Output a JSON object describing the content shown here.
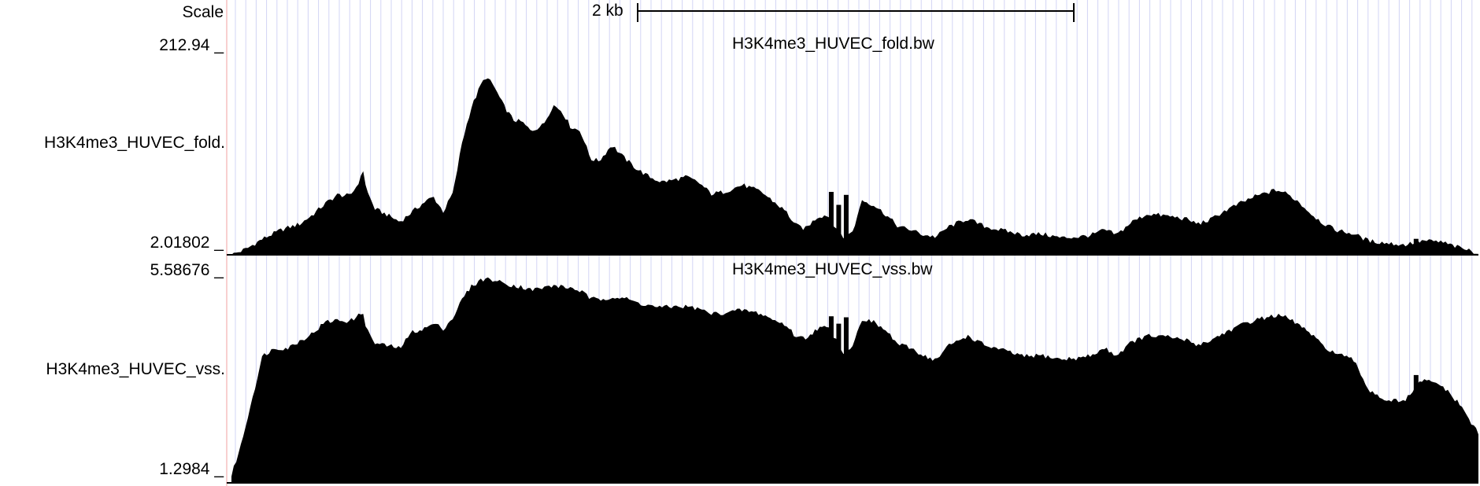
{
  "scale": {
    "label": "Scale",
    "bar_text": "2 kb"
  },
  "chart_data": [
    {
      "type": "area",
      "title": "H3K4me3_HUVEC_fold.bw",
      "track_label": "H3K4me3_HUVEC_fold.",
      "y_max_label": "212.94 _",
      "y_min_label": "2.01802 _",
      "ylim": [
        2.01802,
        212.94
      ],
      "color": "#000000",
      "profile": [
        [
          0.0,
          2.0
        ],
        [
          0.012,
          8.0
        ],
        [
          0.025,
          18.0
        ],
        [
          0.04,
          27.0
        ],
        [
          0.055,
          33.0
        ],
        [
          0.065,
          42.0
        ],
        [
          0.075,
          53.0
        ],
        [
          0.085,
          62.0
        ],
        [
          0.095,
          61.0
        ],
        [
          0.1,
          70.0
        ],
        [
          0.104,
          80.0
        ],
        [
          0.106,
          88.0
        ],
        [
          0.108,
          68.0
        ],
        [
          0.115,
          48.0
        ],
        [
          0.125,
          42.0
        ],
        [
          0.135,
          35.0
        ],
        [
          0.145,
          45.0
        ],
        [
          0.155,
          55.0
        ],
        [
          0.162,
          60.0
        ],
        [
          0.17,
          45.0
        ],
        [
          0.178,
          65.0
        ],
        [
          0.185,
          115.0
        ],
        [
          0.192,
          148.0
        ],
        [
          0.2,
          172.0
        ],
        [
          0.204,
          180.0
        ],
        [
          0.21,
          172.0
        ],
        [
          0.218,
          152.0
        ],
        [
          0.226,
          137.0
        ],
        [
          0.233,
          135.0
        ],
        [
          0.24,
          126.0
        ],
        [
          0.25,
          132.0
        ],
        [
          0.258,
          152.0
        ],
        [
          0.265,
          146.0
        ],
        [
          0.272,
          130.0
        ],
        [
          0.28,
          126.0
        ],
        [
          0.288,
          98.0
        ],
        [
          0.295,
          96.0
        ],
        [
          0.305,
          112.0
        ],
        [
          0.315,
          99.0
        ],
        [
          0.325,
          88.0
        ],
        [
          0.335,
          80.0
        ],
        [
          0.345,
          75.0
        ],
        [
          0.355,
          77.0
        ],
        [
          0.365,
          80.0
        ],
        [
          0.375,
          74.0
        ],
        [
          0.385,
          63.0
        ],
        [
          0.395,
          65.0
        ],
        [
          0.41,
          72.0
        ],
        [
          0.425,
          65.0
        ],
        [
          0.435,
          55.0
        ],
        [
          0.445,
          45.0
        ],
        [
          0.452,
          32.0
        ],
        [
          0.46,
          28.0
        ],
        [
          0.47,
          40.0
        ],
        [
          0.478,
          42.0
        ],
        [
          0.486,
          27.0
        ],
        [
          0.492,
          18.0
        ],
        [
          0.5,
          30.0
        ],
        [
          0.505,
          57.0
        ],
        [
          0.515,
          52.0
        ],
        [
          0.525,
          42.0
        ],
        [
          0.535,
          30.0
        ],
        [
          0.545,
          27.0
        ],
        [
          0.555,
          22.0
        ],
        [
          0.565,
          20.0
        ],
        [
          0.575,
          30.0
        ],
        [
          0.59,
          38.0
        ],
        [
          0.605,
          30.0
        ],
        [
          0.62,
          26.0
        ],
        [
          0.635,
          22.0
        ],
        [
          0.65,
          23.0
        ],
        [
          0.665,
          19.0
        ],
        [
          0.68,
          20.0
        ],
        [
          0.69,
          22.0
        ],
        [
          0.7,
          27.0
        ],
        [
          0.71,
          22.0
        ],
        [
          0.722,
          35.0
        ],
        [
          0.735,
          43.0
        ],
        [
          0.75,
          41.0
        ],
        [
          0.765,
          38.0
        ],
        [
          0.775,
          33.0
        ],
        [
          0.785,
          37.0
        ],
        [
          0.795,
          45.0
        ],
        [
          0.808,
          53.0
        ],
        [
          0.82,
          60.0
        ],
        [
          0.83,
          64.0
        ],
        [
          0.838,
          67.0
        ],
        [
          0.845,
          64.0
        ],
        [
          0.855,
          56.0
        ],
        [
          0.865,
          44.0
        ],
        [
          0.875,
          34.0
        ],
        [
          0.885,
          27.0
        ],
        [
          0.9,
          23.0
        ],
        [
          0.912,
          16.0
        ],
        [
          0.925,
          14.0
        ],
        [
          0.94,
          12.0
        ],
        [
          0.955,
          16.0
        ],
        [
          0.97,
          15.0
        ],
        [
          0.985,
          9.0
        ],
        [
          1.0,
          4.0
        ]
      ],
      "spikes": [
        [
          0.481,
          65.0
        ],
        [
          0.487,
          52.0
        ],
        [
          0.493,
          62.0
        ],
        [
          0.86,
          44.0
        ],
        [
          0.95,
          18.0
        ]
      ]
    },
    {
      "type": "area",
      "title": "H3K4me3_HUVEC_vss.bw",
      "track_label": "H3K4me3_HUVEC_vss.",
      "y_max_label": "5.58676 _",
      "y_min_label": "1.2984 _",
      "ylim": [
        1.2984,
        5.58676
      ],
      "color": "#000000",
      "profile": [
        [
          0.0,
          1.45
        ],
        [
          0.008,
          2.1
        ],
        [
          0.015,
          2.85
        ],
        [
          0.025,
          3.9
        ],
        [
          0.035,
          4.05
        ],
        [
          0.045,
          4.05
        ],
        [
          0.055,
          4.2
        ],
        [
          0.065,
          4.35
        ],
        [
          0.075,
          4.58
        ],
        [
          0.085,
          4.62
        ],
        [
          0.095,
          4.6
        ],
        [
          0.1,
          4.68
        ],
        [
          0.104,
          4.75
        ],
        [
          0.106,
          4.8
        ],
        [
          0.108,
          4.45
        ],
        [
          0.115,
          4.15
        ],
        [
          0.125,
          4.1
        ],
        [
          0.135,
          4.05
        ],
        [
          0.145,
          4.38
        ],
        [
          0.155,
          4.45
        ],
        [
          0.162,
          4.55
        ],
        [
          0.17,
          4.45
        ],
        [
          0.178,
          4.68
        ],
        [
          0.185,
          5.05
        ],
        [
          0.192,
          5.3
        ],
        [
          0.2,
          5.44
        ],
        [
          0.204,
          5.47
        ],
        [
          0.21,
          5.44
        ],
        [
          0.218,
          5.38
        ],
        [
          0.226,
          5.33
        ],
        [
          0.233,
          5.3
        ],
        [
          0.24,
          5.24
        ],
        [
          0.25,
          5.28
        ],
        [
          0.258,
          5.33
        ],
        [
          0.265,
          5.3
        ],
        [
          0.272,
          5.28
        ],
        [
          0.28,
          5.22
        ],
        [
          0.288,
          5.06
        ],
        [
          0.295,
          5.04
        ],
        [
          0.305,
          5.1
        ],
        [
          0.315,
          5.07
        ],
        [
          0.325,
          4.98
        ],
        [
          0.335,
          4.92
        ],
        [
          0.345,
          4.88
        ],
        [
          0.355,
          4.9
        ],
        [
          0.365,
          4.9
        ],
        [
          0.375,
          4.85
        ],
        [
          0.385,
          4.75
        ],
        [
          0.395,
          4.77
        ],
        [
          0.41,
          4.83
        ],
        [
          0.425,
          4.75
        ],
        [
          0.435,
          4.62
        ],
        [
          0.445,
          4.52
        ],
        [
          0.452,
          4.3
        ],
        [
          0.46,
          4.25
        ],
        [
          0.47,
          4.45
        ],
        [
          0.478,
          4.48
        ],
        [
          0.486,
          4.2
        ],
        [
          0.492,
          3.9
        ],
        [
          0.5,
          4.2
        ],
        [
          0.505,
          4.65
        ],
        [
          0.515,
          4.58
        ],
        [
          0.525,
          4.4
        ],
        [
          0.535,
          4.12
        ],
        [
          0.545,
          4.05
        ],
        [
          0.555,
          3.9
        ],
        [
          0.565,
          3.8
        ],
        [
          0.575,
          4.1
        ],
        [
          0.59,
          4.3
        ],
        [
          0.605,
          4.1
        ],
        [
          0.62,
          4.0
        ],
        [
          0.635,
          3.88
        ],
        [
          0.65,
          3.9
        ],
        [
          0.665,
          3.82
        ],
        [
          0.68,
          3.85
        ],
        [
          0.69,
          3.9
        ],
        [
          0.7,
          4.05
        ],
        [
          0.71,
          3.9
        ],
        [
          0.722,
          4.18
        ],
        [
          0.735,
          4.3
        ],
        [
          0.75,
          4.28
        ],
        [
          0.765,
          4.22
        ],
        [
          0.775,
          4.12
        ],
        [
          0.785,
          4.2
        ],
        [
          0.795,
          4.35
        ],
        [
          0.808,
          4.5
        ],
        [
          0.82,
          4.62
        ],
        [
          0.83,
          4.68
        ],
        [
          0.838,
          4.72
        ],
        [
          0.845,
          4.68
        ],
        [
          0.855,
          4.55
        ],
        [
          0.865,
          4.35
        ],
        [
          0.875,
          4.1
        ],
        [
          0.885,
          3.95
        ],
        [
          0.9,
          3.8
        ],
        [
          0.912,
          3.2
        ],
        [
          0.925,
          3.0
        ],
        [
          0.94,
          2.95
        ],
        [
          0.955,
          3.4
        ],
        [
          0.97,
          3.3
        ],
        [
          0.985,
          2.9
        ],
        [
          1.0,
          2.3
        ]
      ],
      "spikes": [
        [
          0.481,
          4.7
        ],
        [
          0.487,
          4.55
        ],
        [
          0.493,
          4.68
        ],
        [
          0.86,
          4.35
        ],
        [
          0.95,
          3.5
        ]
      ]
    }
  ]
}
